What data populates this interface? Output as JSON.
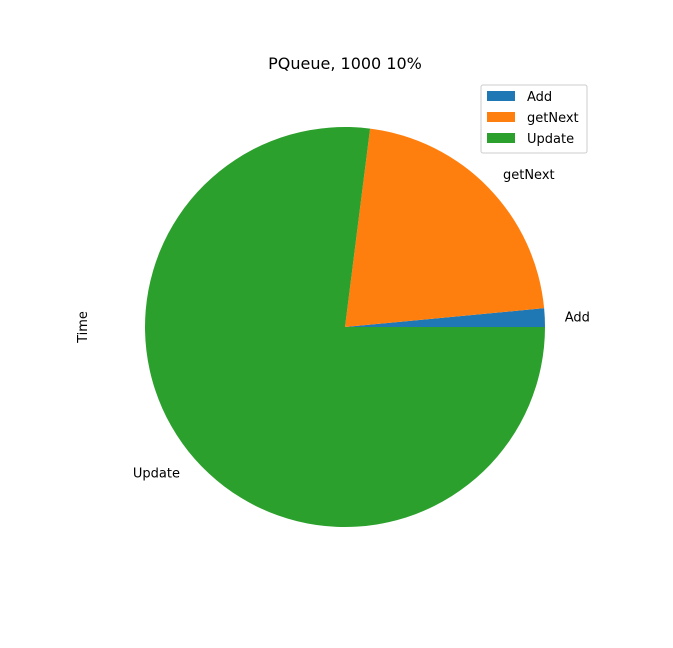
{
  "chart_data": {
    "type": "pie",
    "title": "PQueue, 1000 10%",
    "ylabel": "Time",
    "categories": [
      "Add",
      "getNext",
      "Update"
    ],
    "values": [
      1.5,
      21.5,
      77.0
    ],
    "colors": [
      "#1f77b4",
      "#ff7f0e",
      "#2ca02c"
    ],
    "start_angle_deg": 0,
    "direction": "counterclockwise",
    "legend": {
      "location": "top-right",
      "entries": [
        "Add",
        "getNext",
        "Update"
      ]
    }
  }
}
